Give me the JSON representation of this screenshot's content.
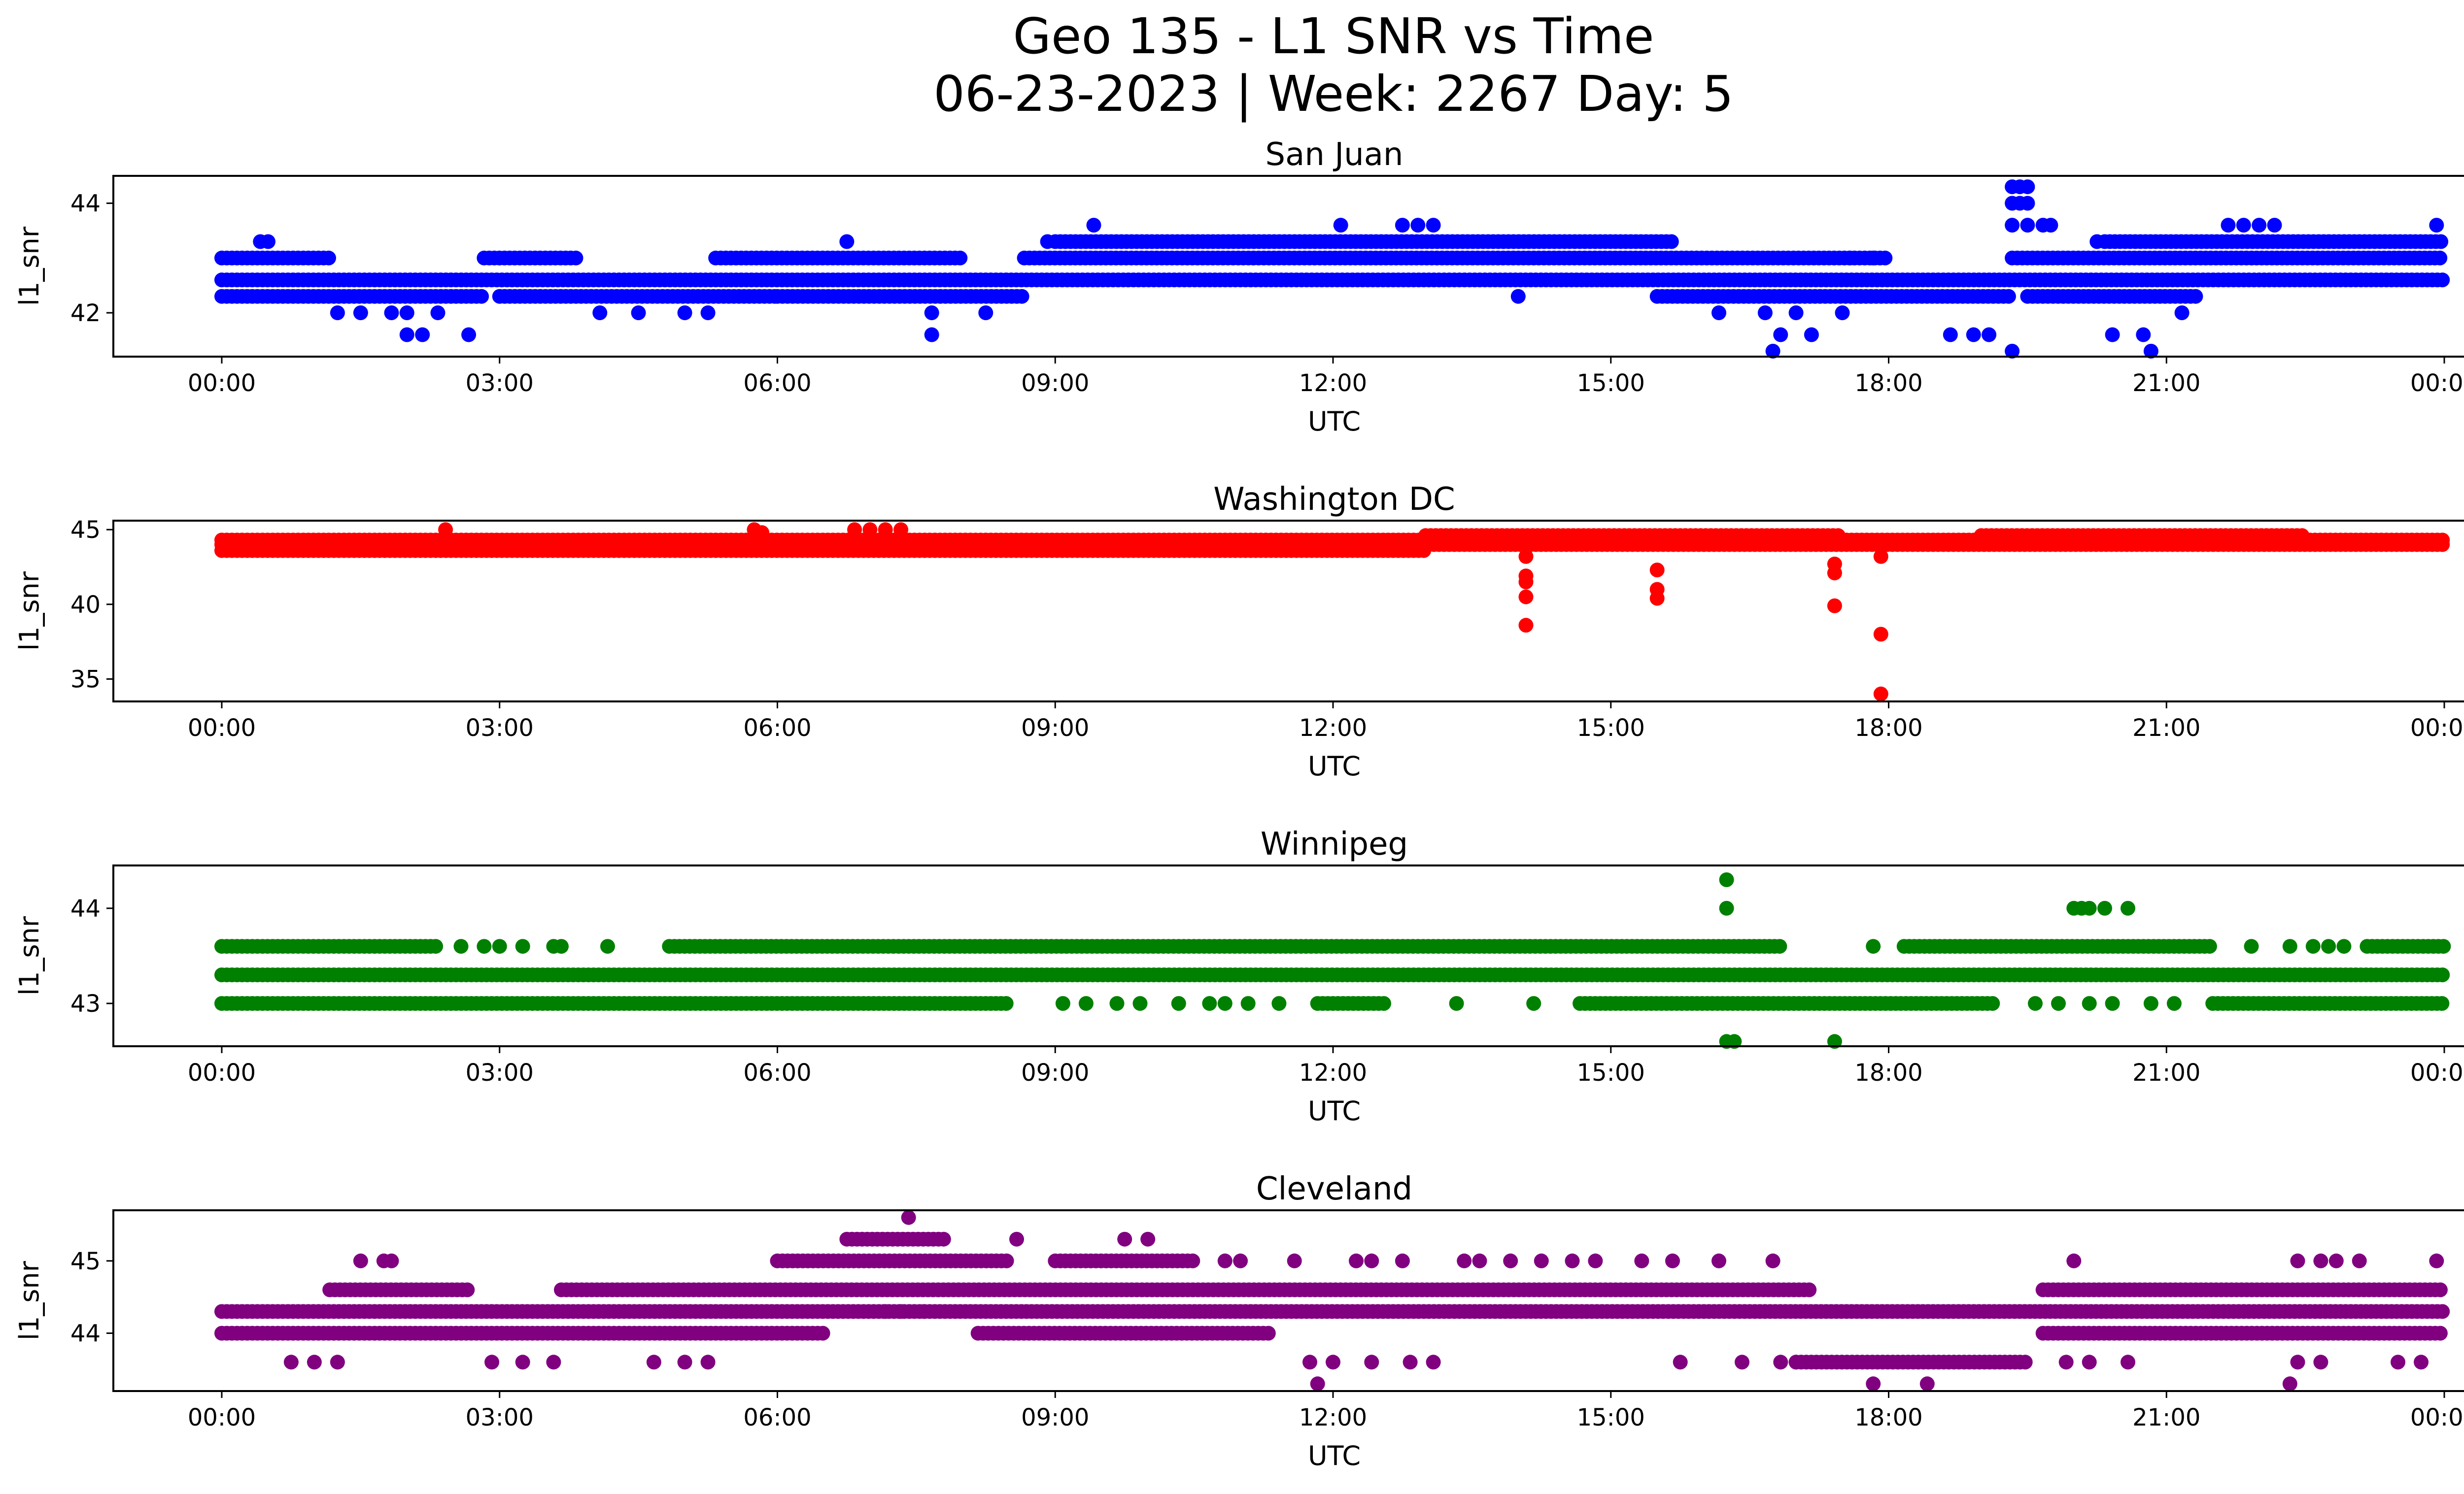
{
  "figure": {
    "title_line1": "Geo 135 - L1 SNR vs Time",
    "title_line2": "06-23-2023 | Week: 2267 Day: 5"
  },
  "chart_data": [
    {
      "type": "scatter",
      "title": "San Juan",
      "xlabel": "UTC",
      "ylabel": "l1_snr",
      "color": "#0000ff",
      "xlim": [
        "00:00",
        "24:00"
      ],
      "ylim": [
        41.2,
        44.5
      ],
      "x_ticks": [
        "00:00",
        "03:00",
        "06:00",
        "09:00",
        "12:00",
        "15:00",
        "18:00",
        "21:00",
        "00:00"
      ],
      "y_ticks": [
        42,
        44
      ],
      "series": [
        {
          "values_bands": [
            {
              "y": 42.6,
              "from": "00:00",
              "to": "24:00"
            },
            {
              "y": 43.0,
              "from": "00:00",
              "to": "01:10"
            },
            {
              "y": 42.3,
              "from": "00:00",
              "to": "02:50"
            },
            {
              "y": 43.0,
              "from": "02:50",
              "to": "03:50"
            },
            {
              "y": 42.3,
              "from": "03:00",
              "to": "06:00"
            },
            {
              "y": 43.0,
              "from": "05:20",
              "to": "08:00"
            },
            {
              "y": 42.3,
              "from": "06:00",
              "to": "08:40"
            },
            {
              "y": 43.0,
              "from": "08:40",
              "to": "18:00"
            },
            {
              "y": 43.3,
              "from": "09:00",
              "to": "15:40"
            },
            {
              "y": 42.3,
              "from": "15:30",
              "to": "19:20"
            },
            {
              "y": 43.0,
              "from": "19:20",
              "to": "24:00"
            },
            {
              "y": 43.3,
              "from": "20:20",
              "to": "24:00"
            },
            {
              "y": 42.3,
              "from": "19:30",
              "to": "21:20"
            }
          ]
        },
        {
          "points": [
            [
              "00:25",
              43.3
            ],
            [
              "00:30",
              43.3
            ],
            [
              "02:00",
              41.6
            ],
            [
              "02:10",
              41.6
            ],
            [
              "02:40",
              41.6
            ],
            [
              "01:15",
              42.0
            ],
            [
              "01:30",
              42.0
            ],
            [
              "01:50",
              42.0
            ],
            [
              "02:00",
              42.0
            ],
            [
              "02:20",
              42.0
            ],
            [
              "04:05",
              42.0
            ],
            [
              "04:30",
              42.0
            ],
            [
              "05:00",
              42.0
            ],
            [
              "05:15",
              42.0
            ],
            [
              "06:45",
              43.3
            ],
            [
              "07:40",
              41.6
            ],
            [
              "07:40",
              42.0
            ],
            [
              "08:15",
              42.0
            ],
            [
              "08:55",
              43.3
            ],
            [
              "09:25",
              43.6
            ],
            [
              "12:05",
              43.6
            ],
            [
              "12:45",
              43.6
            ],
            [
              "12:55",
              43.6
            ],
            [
              "13:05",
              43.6
            ],
            [
              "14:00",
              42.3
            ],
            [
              "16:10",
              42.0
            ],
            [
              "16:45",
              41.3
            ],
            [
              "16:50",
              41.6
            ],
            [
              "17:10",
              41.6
            ],
            [
              "16:40",
              42.0
            ],
            [
              "17:00",
              42.0
            ],
            [
              "17:30",
              42.0
            ],
            [
              "17:35",
              43.0
            ],
            [
              "17:50",
              43.0
            ],
            [
              "18:40",
              41.6
            ],
            [
              "18:55",
              41.6
            ],
            [
              "19:05",
              41.6
            ],
            [
              "19:20",
              41.3
            ],
            [
              "19:20",
              44.3
            ],
            [
              "19:25",
              44.3
            ],
            [
              "19:30",
              44.3
            ],
            [
              "19:20",
              44.0
            ],
            [
              "19:25",
              44.0
            ],
            [
              "19:30",
              44.0
            ],
            [
              "19:20",
              43.6
            ],
            [
              "19:30",
              43.6
            ],
            [
              "19:40",
              43.6
            ],
            [
              "19:45",
              43.6
            ],
            [
              "20:15",
              43.3
            ],
            [
              "20:25",
              41.6
            ],
            [
              "20:45",
              41.6
            ],
            [
              "20:50",
              41.3
            ],
            [
              "21:10",
              42.0
            ],
            [
              "21:40",
              43.6
            ],
            [
              "21:50",
              43.6
            ],
            [
              "22:00",
              43.6
            ],
            [
              "22:10",
              43.6
            ],
            [
              "23:55",
              43.6
            ]
          ]
        }
      ]
    },
    {
      "type": "scatter",
      "title": "Washington DC",
      "xlabel": "UTC",
      "ylabel": "l1_snr",
      "color": "#ff0000",
      "xlim": [
        "00:00",
        "24:00"
      ],
      "ylim": [
        33.5,
        45.6
      ],
      "x_ticks": [
        "00:00",
        "03:00",
        "06:00",
        "09:00",
        "12:00",
        "15:00",
        "18:00",
        "21:00",
        "00:00"
      ],
      "y_ticks": [
        35,
        40,
        45
      ],
      "series": [
        {
          "values_bands": [
            {
              "y": 44.0,
              "from": "00:00",
              "to": "24:00"
            },
            {
              "y": 44.3,
              "from": "00:00",
              "to": "24:00"
            },
            {
              "y": 43.6,
              "from": "00:00",
              "to": "13:00"
            },
            {
              "y": 44.6,
              "from": "13:00",
              "to": "17:30"
            },
            {
              "y": 44.6,
              "from": "19:00",
              "to": "22:30"
            }
          ]
        },
        {
          "points": [
            [
              "02:25",
              45.0
            ],
            [
              "05:45",
              45.0
            ],
            [
              "05:50",
              44.8
            ],
            [
              "06:50",
              45.0
            ],
            [
              "07:00",
              45.0
            ],
            [
              "07:10",
              45.0
            ],
            [
              "07:20",
              45.0
            ],
            [
              "14:05",
              43.2
            ],
            [
              "14:05",
              41.9
            ],
            [
              "14:05",
              41.5
            ],
            [
              "14:05",
              40.5
            ],
            [
              "14:05",
              38.6
            ],
            [
              "15:30",
              42.3
            ],
            [
              "15:30",
              41.0
            ],
            [
              "15:30",
              40.4
            ],
            [
              "17:25",
              42.7
            ],
            [
              "17:25",
              42.1
            ],
            [
              "17:25",
              39.9
            ],
            [
              "17:55",
              43.2
            ],
            [
              "17:55",
              38.0
            ],
            [
              "17:55",
              34.0
            ]
          ]
        }
      ]
    },
    {
      "type": "scatter",
      "title": "Winnipeg",
      "xlabel": "UTC",
      "ylabel": "l1_snr",
      "color": "#008000",
      "xlim": [
        "00:00",
        "24:00"
      ],
      "ylim": [
        42.55,
        44.45
      ],
      "x_ticks": [
        "00:00",
        "03:00",
        "06:00",
        "09:00",
        "12:00",
        "15:00",
        "18:00",
        "21:00",
        "00:00"
      ],
      "y_ticks": [
        43,
        44
      ],
      "series": [
        {
          "values_bands": [
            {
              "y": 43.3,
              "from": "00:00",
              "to": "24:00"
            },
            {
              "y": 43.6,
              "from": "00:00",
              "to": "02:20"
            },
            {
              "y": 43.6,
              "from": "04:50",
              "to": "16:50"
            },
            {
              "y": 43.6,
              "from": "18:10",
              "to": "21:30"
            },
            {
              "y": 43.0,
              "from": "00:00",
              "to": "08:30"
            },
            {
              "y": 43.0,
              "from": "11:50",
              "to": "12:35"
            },
            {
              "y": 43.0,
              "from": "14:40",
              "to": "19:10"
            },
            {
              "y": 43.0,
              "from": "21:30",
              "to": "24:00"
            },
            {
              "y": 43.6,
              "from": "23:10",
              "to": "24:00"
            }
          ]
        },
        {
          "points": [
            [
              "02:35",
              43.6
            ],
            [
              "02:50",
              43.6
            ],
            [
              "03:00",
              43.6
            ],
            [
              "03:15",
              43.6
            ],
            [
              "03:35",
              43.6
            ],
            [
              "03:40",
              43.6
            ],
            [
              "04:10",
              43.6
            ],
            [
              "16:15",
              44.3
            ],
            [
              "16:15",
              44.0
            ],
            [
              "16:15",
              42.6
            ],
            [
              "16:20",
              42.6
            ],
            [
              "17:25",
              42.6
            ],
            [
              "17:50",
              43.6
            ],
            [
              "20:00",
              44.0
            ],
            [
              "20:05",
              44.0
            ],
            [
              "20:10",
              44.0
            ],
            [
              "20:20",
              44.0
            ],
            [
              "20:35",
              44.0
            ],
            [
              "21:55",
              43.6
            ],
            [
              "22:20",
              43.6
            ],
            [
              "22:35",
              43.6
            ],
            [
              "22:45",
              43.6
            ],
            [
              "22:55",
              43.6
            ],
            [
              "09:05",
              43.0
            ],
            [
              "09:20",
              43.0
            ],
            [
              "09:40",
              43.0
            ],
            [
              "09:55",
              43.0
            ],
            [
              "10:20",
              43.0
            ],
            [
              "10:40",
              43.0
            ],
            [
              "10:50",
              43.0
            ],
            [
              "11:05",
              43.0
            ],
            [
              "11:25",
              43.0
            ],
            [
              "13:20",
              43.0
            ],
            [
              "14:10",
              43.0
            ],
            [
              "19:35",
              43.0
            ],
            [
              "19:50",
              43.0
            ],
            [
              "20:10",
              43.0
            ],
            [
              "20:25",
              43.0
            ],
            [
              "20:50",
              43.0
            ],
            [
              "21:05",
              43.0
            ]
          ]
        }
      ]
    },
    {
      "type": "scatter",
      "title": "Cleveland",
      "xlabel": "UTC",
      "ylabel": "l1_snr",
      "color": "#800080",
      "xlim": [
        "00:00",
        "24:00"
      ],
      "ylim": [
        43.2,
        45.7
      ],
      "x_ticks": [
        "00:00",
        "03:00",
        "06:00",
        "09:00",
        "12:00",
        "15:00",
        "18:00",
        "21:00",
        "00:00"
      ],
      "y_ticks": [
        44,
        45
      ],
      "series": [
        {
          "values_bands": [
            {
              "y": 44.3,
              "from": "00:00",
              "to": "24:00"
            },
            {
              "y": 44.0,
              "from": "00:00",
              "to": "06:30"
            },
            {
              "y": 44.0,
              "from": "08:10",
              "to": "11:20"
            },
            {
              "y": 44.0,
              "from": "19:40",
              "to": "24:00"
            },
            {
              "y": 44.6,
              "from": "01:10",
              "to": "02:40"
            },
            {
              "y": 44.6,
              "from": "03:40",
              "to": "17:10"
            },
            {
              "y": 44.6,
              "from": "19:40",
              "to": "24:00"
            },
            {
              "y": 45.0,
              "from": "06:00",
              "to": "08:30"
            },
            {
              "y": 45.0,
              "from": "09:00",
              "to": "10:30"
            },
            {
              "y": 45.3,
              "from": "06:45",
              "to": "07:50"
            },
            {
              "y": 43.6,
              "from": "17:00",
              "to": "19:30"
            }
          ]
        },
        {
          "points": [
            [
              "07:25",
              45.6
            ],
            [
              "08:35",
              45.3
            ],
            [
              "09:45",
              45.3
            ],
            [
              "10:00",
              45.3
            ],
            [
              "01:30",
              45.0
            ],
            [
              "01:45",
              45.0
            ],
            [
              "01:50",
              45.0
            ],
            [
              "10:50",
              45.0
            ],
            [
              "11:00",
              45.0
            ],
            [
              "11:35",
              45.0
            ],
            [
              "12:15",
              45.0
            ],
            [
              "12:25",
              45.0
            ],
            [
              "12:45",
              45.0
            ],
            [
              "13:25",
              45.0
            ],
            [
              "13:35",
              45.0
            ],
            [
              "13:55",
              45.0
            ],
            [
              "14:15",
              45.0
            ],
            [
              "14:35",
              45.0
            ],
            [
              "14:50",
              45.0
            ],
            [
              "15:20",
              45.0
            ],
            [
              "15:40",
              45.0
            ],
            [
              "16:10",
              45.0
            ],
            [
              "16:45",
              45.0
            ],
            [
              "20:00",
              45.0
            ],
            [
              "22:25",
              45.0
            ],
            [
              "22:40",
              45.0
            ],
            [
              "22:50",
              45.0
            ],
            [
              "23:05",
              45.0
            ],
            [
              "23:55",
              45.0
            ],
            [
              "00:45",
              43.6
            ],
            [
              "01:00",
              43.6
            ],
            [
              "01:15",
              43.6
            ],
            [
              "02:55",
              43.6
            ],
            [
              "03:15",
              43.6
            ],
            [
              "03:35",
              43.6
            ],
            [
              "04:40",
              43.6
            ],
            [
              "05:00",
              43.6
            ],
            [
              "05:15",
              43.6
            ],
            [
              "11:45",
              43.6
            ],
            [
              "12:00",
              43.6
            ],
            [
              "12:25",
              43.6
            ],
            [
              "12:50",
              43.6
            ],
            [
              "13:05",
              43.6
            ],
            [
              "15:45",
              43.6
            ],
            [
              "16:25",
              43.6
            ],
            [
              "16:50",
              43.6
            ],
            [
              "17:00",
              43.6
            ],
            [
              "19:55",
              43.6
            ],
            [
              "20:10",
              43.6
            ],
            [
              "20:35",
              43.6
            ],
            [
              "22:25",
              43.6
            ],
            [
              "22:40",
              43.6
            ],
            [
              "23:30",
              43.6
            ],
            [
              "23:45",
              43.6
            ],
            [
              "11:50",
              43.3
            ],
            [
              "17:50",
              43.3
            ],
            [
              "18:25",
              43.3
            ],
            [
              "22:20",
              43.3
            ],
            [
              "07:10",
              44.3
            ],
            [
              "07:20",
              44.3
            ],
            [
              "07:35",
              44.3
            ]
          ]
        }
      ]
    }
  ]
}
